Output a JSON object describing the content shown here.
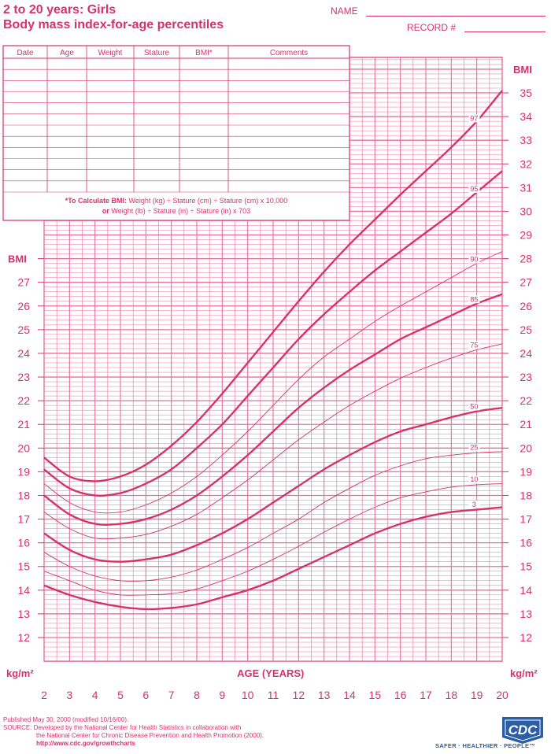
{
  "header": {
    "title_line1": "2 to 20 years: Girls",
    "title_line2": "Body mass index-for-age percentiles",
    "name_label": "NAME",
    "record_label": "RECORD #"
  },
  "record_table": {
    "columns": [
      "Date",
      "Age",
      "Weight",
      "Stature",
      "BMI*",
      "Comments"
    ],
    "note_line1_bold": "*To Calculate BMI:",
    "note_line1": " Weight (kg) ÷ Stature (cm) ÷ Stature (cm) x 10,000",
    "note_line2_bold": "or",
    "note_line2": " Weight (lb) ÷ Stature (in) ÷ Stature (in) x 703"
  },
  "chart_data": {
    "type": "line",
    "xlabel": "AGE (YEARS)",
    "ylabel": "BMI",
    "unit_label": "kg/m²",
    "xlim": [
      2,
      20
    ],
    "ylim": [
      11,
      36
    ],
    "x_ticks": [
      2,
      3,
      4,
      5,
      6,
      7,
      8,
      9,
      10,
      11,
      12,
      13,
      14,
      15,
      16,
      17,
      18,
      19,
      20
    ],
    "y_ticks_left": [
      12,
      13,
      14,
      15,
      16,
      17,
      18,
      19,
      20,
      21,
      22,
      23,
      24,
      25,
      26,
      27
    ],
    "y_ticks_right": [
      12,
      13,
      14,
      15,
      16,
      17,
      18,
      19,
      20,
      21,
      22,
      23,
      24,
      25,
      26,
      27,
      28,
      29,
      30,
      31,
      32,
      33,
      34,
      35
    ],
    "x": [
      2,
      3,
      4,
      5,
      6,
      7,
      8,
      9,
      10,
      11,
      12,
      13,
      14,
      15,
      16,
      17,
      18,
      19,
      20
    ],
    "series": [
      {
        "name": "3",
        "bold": true,
        "values": [
          14.2,
          13.8,
          13.5,
          13.3,
          13.2,
          13.25,
          13.4,
          13.7,
          14.0,
          14.4,
          14.9,
          15.4,
          15.9,
          16.4,
          16.8,
          17.1,
          17.3,
          17.4,
          17.5
        ]
      },
      {
        "name": "10",
        "bold": false,
        "values": [
          14.8,
          14.4,
          14.0,
          13.8,
          13.8,
          13.85,
          14.05,
          14.4,
          14.8,
          15.3,
          15.85,
          16.45,
          17.0,
          17.5,
          17.9,
          18.15,
          18.35,
          18.45,
          18.5
        ]
      },
      {
        "name": "25",
        "bold": false,
        "values": [
          15.6,
          15.0,
          14.6,
          14.4,
          14.4,
          14.55,
          14.85,
          15.3,
          15.8,
          16.4,
          17.0,
          17.7,
          18.3,
          18.85,
          19.25,
          19.55,
          19.7,
          19.8,
          19.85
        ]
      },
      {
        "name": "50",
        "bold": true,
        "values": [
          16.4,
          15.7,
          15.3,
          15.2,
          15.3,
          15.5,
          15.9,
          16.4,
          17.0,
          17.7,
          18.4,
          19.1,
          19.7,
          20.25,
          20.7,
          21.0,
          21.3,
          21.55,
          21.7
        ]
      },
      {
        "name": "75",
        "bold": false,
        "values": [
          17.3,
          16.6,
          16.2,
          16.2,
          16.35,
          16.7,
          17.2,
          17.9,
          18.65,
          19.5,
          20.35,
          21.1,
          21.8,
          22.4,
          22.95,
          23.4,
          23.8,
          24.15,
          24.4
        ]
      },
      {
        "name": "85",
        "bold": true,
        "values": [
          18.0,
          17.2,
          16.8,
          16.8,
          17.0,
          17.4,
          18.0,
          18.8,
          19.7,
          20.7,
          21.7,
          22.55,
          23.3,
          23.95,
          24.6,
          25.1,
          25.6,
          26.1,
          26.5
        ]
      },
      {
        "name": "90",
        "bold": false,
        "values": [
          18.5,
          17.7,
          17.3,
          17.3,
          17.6,
          18.1,
          18.8,
          19.7,
          20.7,
          21.8,
          22.9,
          23.85,
          24.6,
          25.35,
          26.0,
          26.6,
          27.2,
          27.8,
          28.3
        ]
      },
      {
        "name": "95",
        "bold": true,
        "values": [
          19.1,
          18.3,
          18.0,
          18.1,
          18.5,
          19.1,
          20.0,
          21.0,
          22.2,
          23.4,
          24.6,
          25.65,
          26.6,
          27.5,
          28.3,
          29.1,
          29.9,
          30.8,
          31.7
        ]
      },
      {
        "name": "97",
        "bold": true,
        "values": [
          19.6,
          18.8,
          18.6,
          18.8,
          19.3,
          20.1,
          21.1,
          22.3,
          23.6,
          24.9,
          26.2,
          27.45,
          28.6,
          29.65,
          30.7,
          31.7,
          32.7,
          33.8,
          35.1
        ]
      }
    ]
  },
  "footer": {
    "line1": "Published May 30, 2000 (modified 10/16/00).",
    "line2": "SOURCE: Developed by the National Center for Health Statistics in collaboration with",
    "line3": "the National Center for Chronic Disease Prevention and Health Promotion (2000).",
    "link": "http://www.cdc.gov/growthcharts"
  },
  "logo": {
    "name": "cdc-logo",
    "text": "CDC",
    "tagline": "SAFER · HEALTHIER · PEOPLE™",
    "color": "#2b5ea8"
  },
  "colors": {
    "accent": "#d6336c",
    "grid": "#e8709a",
    "logo_blue": "#2b5ea8"
  }
}
